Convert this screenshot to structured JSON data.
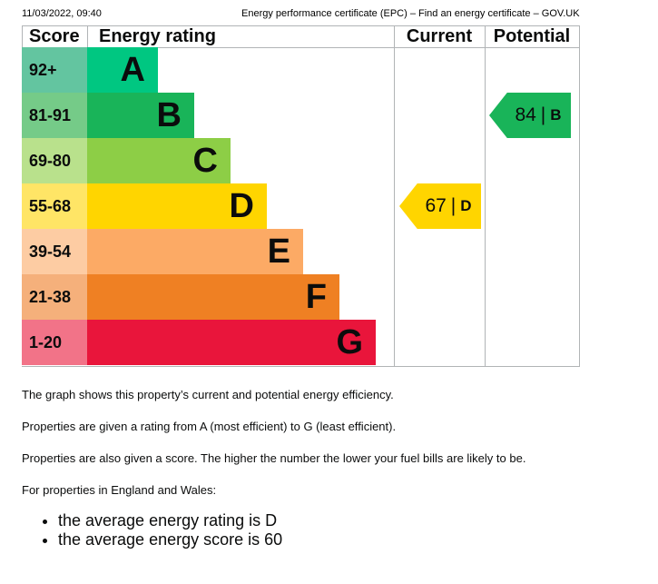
{
  "header": {
    "timestamp": "11/03/2022, 09:40",
    "page_title": "Energy performance certificate (EPC) – Find an energy certificate – GOV.UK"
  },
  "chart_data": {
    "type": "table",
    "columns": {
      "score": "Score",
      "rating": "Energy rating",
      "current": "Current",
      "potential": "Potential"
    },
    "bands": [
      {
        "range": "92+",
        "letter": "A",
        "color": "#008054",
        "bar_color": "#00c781",
        "score_color": "#63c5a0"
      },
      {
        "range": "81-91",
        "letter": "B",
        "color": "#19b459",
        "bar_color": "#19b459",
        "score_color": "#75cb88"
      },
      {
        "range": "69-80",
        "letter": "C",
        "color": "#8dce46",
        "bar_color": "#8dce46",
        "score_color": "#b9e18c"
      },
      {
        "range": "55-68",
        "letter": "D",
        "color": "#ffd500",
        "bar_color": "#ffd500",
        "score_color": "#ffe566"
      },
      {
        "range": "39-54",
        "letter": "E",
        "color": "#fcaa65",
        "bar_color": "#fcaa65",
        "score_color": "#fdcca3"
      },
      {
        "range": "21-38",
        "letter": "F",
        "color": "#ef8023",
        "bar_color": "#ef8023",
        "score_color": "#f5b07b"
      },
      {
        "range": "1-20",
        "letter": "G",
        "color": "#e9153b",
        "bar_color": "#e9153b",
        "score_color": "#f27388"
      }
    ],
    "current": {
      "score": "67",
      "separator": "|",
      "letter": "D",
      "color": "#ffd500",
      "band_index": 3
    },
    "potential": {
      "score": "84",
      "separator": "|",
      "letter": "B",
      "color": "#19b459",
      "band_index": 1
    }
  },
  "text": {
    "p1": "The graph shows this property’s current and potential energy efficiency.",
    "p2": "Properties are given a rating from A (most efficient) to G (least efficient).",
    "p3": "Properties are also given a score. The higher the number the lower your fuel bills are likely to be.",
    "p4": "For properties in England and Wales:",
    "bullets": [
      "the average energy rating is D",
      "the average energy score is 60"
    ]
  }
}
